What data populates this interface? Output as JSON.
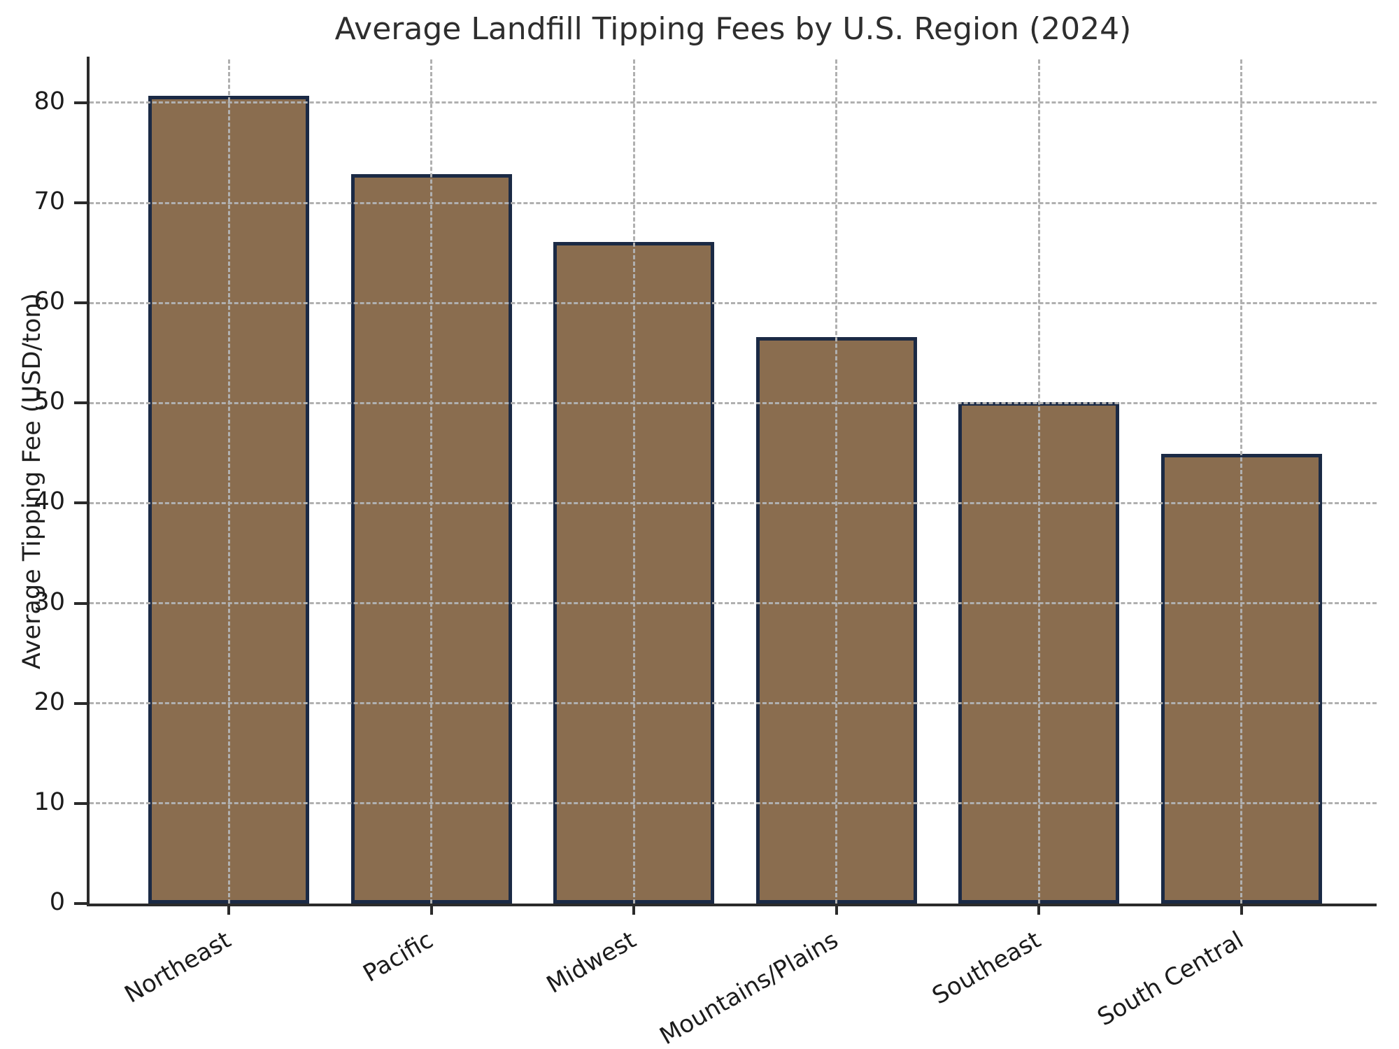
{
  "figure": {
    "background": "#ffffff"
  },
  "chart_data": {
    "type": "bar",
    "title": "Average Landfill Tipping Fees by U.S. Region (2024)",
    "xlabel": "",
    "ylabel": "Average Tipping Fee (USD/ton)",
    "categories": [
      "Northeast",
      "Pacific",
      "Midwest",
      "Mountains/Plains",
      "Southeast",
      "South Central"
    ],
    "values": [
      80.7,
      72.9,
      66.1,
      56.6,
      50.1,
      44.9
    ],
    "yticks": [
      0,
      10,
      20,
      30,
      40,
      50,
      60,
      70,
      80
    ],
    "ylim": [
      0,
      84.33
    ],
    "grid": "dashed gray, horizontal and vertical, drawn above bars",
    "legend": "none",
    "spines": "left and bottom only",
    "colors": {
      "bar_fill": "#8a6d4f",
      "bar_edge": "#1b2a45",
      "grid": "#b0b0b0",
      "spine": "#2b2b2b",
      "text": "#1c1c1c"
    }
  }
}
